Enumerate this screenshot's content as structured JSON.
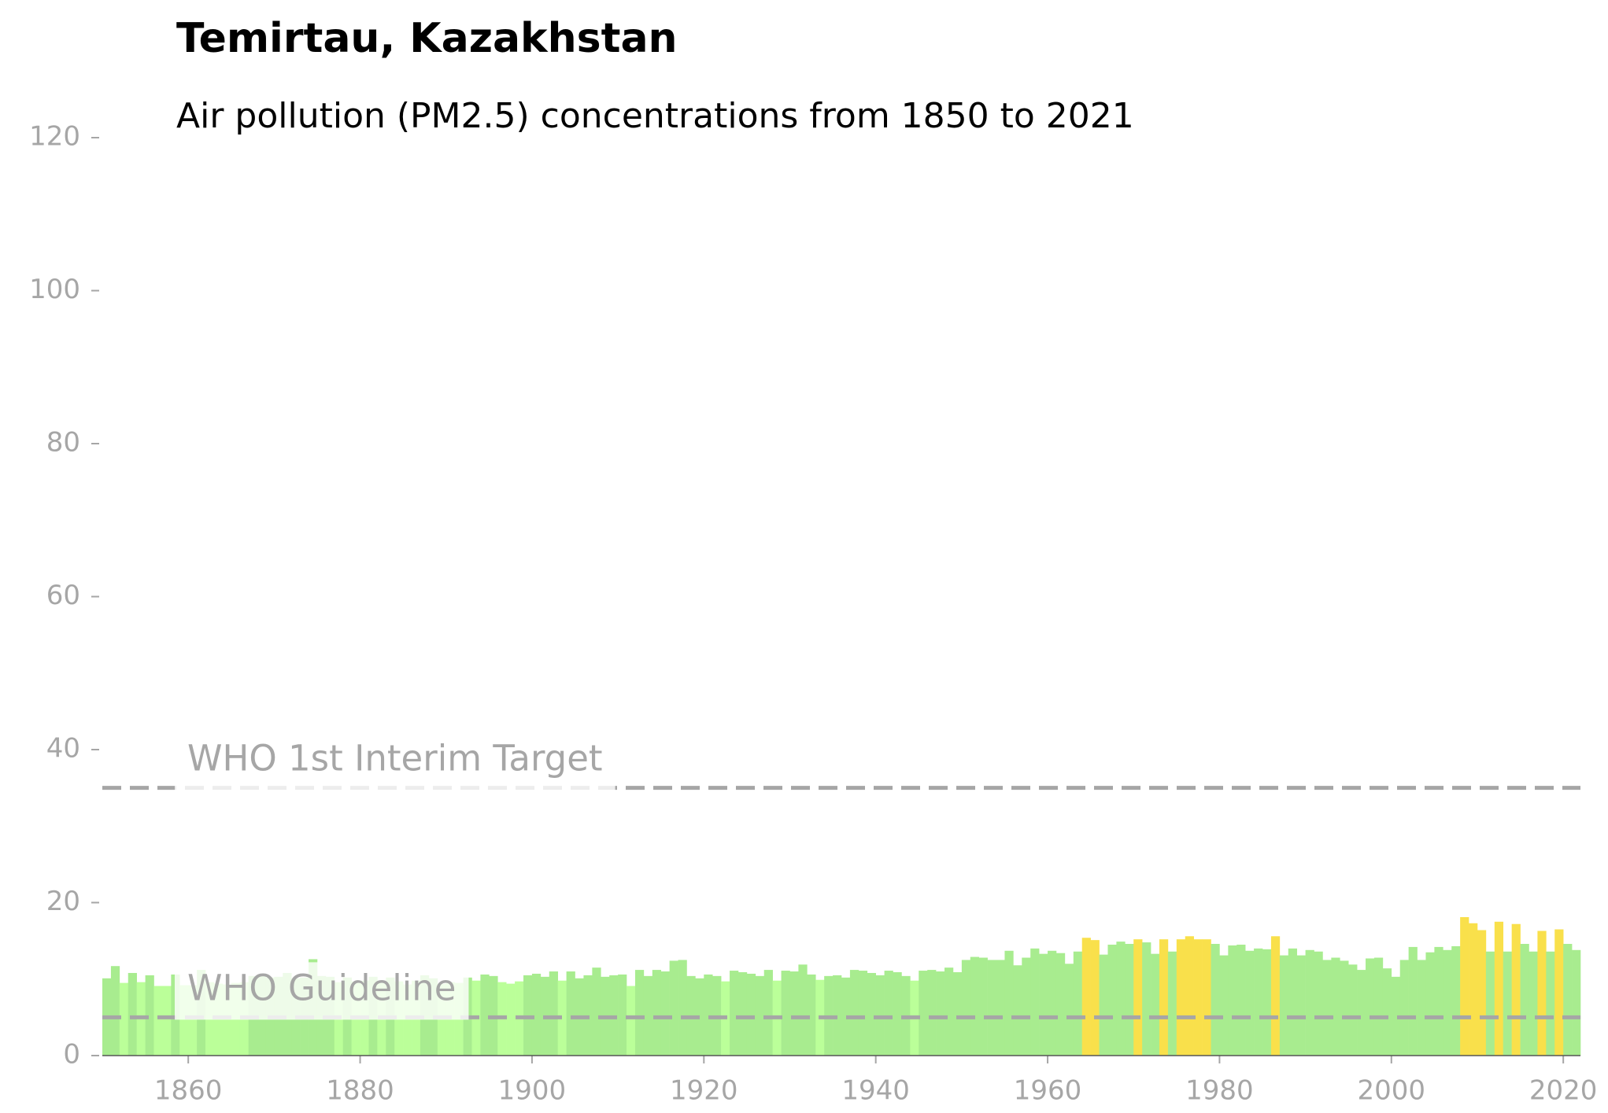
{
  "chart_data": {
    "type": "bar",
    "title": "Temirtau, Kazakhstan",
    "subtitle": "Air pollution (PM2.5) concentrations from 1850 to 2021",
    "x": [
      1850,
      1851,
      1852,
      1853,
      1854,
      1855,
      1856,
      1857,
      1858,
      1859,
      1860,
      1861,
      1862,
      1863,
      1864,
      1865,
      1866,
      1867,
      1868,
      1869,
      1870,
      1871,
      1872,
      1873,
      1874,
      1875,
      1876,
      1877,
      1878,
      1879,
      1880,
      1881,
      1882,
      1883,
      1884,
      1885,
      1886,
      1887,
      1888,
      1889,
      1890,
      1891,
      1892,
      1893,
      1894,
      1895,
      1896,
      1897,
      1898,
      1899,
      1900,
      1901,
      1902,
      1903,
      1904,
      1905,
      1906,
      1907,
      1908,
      1909,
      1910,
      1911,
      1912,
      1913,
      1914,
      1915,
      1916,
      1917,
      1918,
      1919,
      1920,
      1921,
      1922,
      1923,
      1924,
      1925,
      1926,
      1927,
      1928,
      1929,
      1930,
      1931,
      1932,
      1933,
      1934,
      1935,
      1936,
      1937,
      1938,
      1939,
      1940,
      1941,
      1942,
      1943,
      1944,
      1945,
      1946,
      1947,
      1948,
      1949,
      1950,
      1951,
      1952,
      1953,
      1954,
      1955,
      1956,
      1957,
      1958,
      1959,
      1960,
      1961,
      1962,
      1963,
      1964,
      1965,
      1966,
      1967,
      1968,
      1969,
      1970,
      1971,
      1972,
      1973,
      1974,
      1975,
      1976,
      1977,
      1978,
      1979,
      1980,
      1981,
      1982,
      1983,
      1984,
      1985,
      1986,
      1987,
      1988,
      1989,
      1990,
      1991,
      1992,
      1993,
      1994,
      1995,
      1996,
      1997,
      1998,
      1999,
      2000,
      2001,
      2002,
      2003,
      2004,
      2005,
      2006,
      2007,
      2008,
      2009,
      2010,
      2011,
      2012,
      2013,
      2014,
      2015,
      2016,
      2017,
      2018,
      2019,
      2020,
      2021
    ],
    "values": [
      10.1,
      11.7,
      9.5,
      10.8,
      9.6,
      10.5,
      9.1,
      9.1,
      10.6,
      9.2,
      9.2,
      11.2,
      9.6,
      9.4,
      9.3,
      9.5,
      9.6,
      10.4,
      10.6,
      10.2,
      10.3,
      10.8,
      10.1,
      10.2,
      12.6,
      10.4,
      10.3,
      9.6,
      10.2,
      9.7,
      9.8,
      10.3,
      9.5,
      10.2,
      9.7,
      9.3,
      9.8,
      10.5,
      10.1,
      9.4,
      9.6,
      9.5,
      10.2,
      9.8,
      10.6,
      10.4,
      9.6,
      9.4,
      9.7,
      10.5,
      10.7,
      10.3,
      11.0,
      9.8,
      11.0,
      10.1,
      10.5,
      11.5,
      10.3,
      10.5,
      10.6,
      9.1,
      11.2,
      10.4,
      11.2,
      11.0,
      12.4,
      12.5,
      10.4,
      10.1,
      10.6,
      10.4,
      9.7,
      11.1,
      10.9,
      10.7,
      10.4,
      11.2,
      9.8,
      11.1,
      11.0,
      11.9,
      10.6,
      9.9,
      10.4,
      10.5,
      10.2,
      11.2,
      11.1,
      10.8,
      10.5,
      11.1,
      10.9,
      10.4,
      9.8,
      11.1,
      11.2,
      11.0,
      11.5,
      10.9,
      12.5,
      12.9,
      12.8,
      12.5,
      12.5,
      13.7,
      11.8,
      12.8,
      14.0,
      13.3,
      13.7,
      13.4,
      12.0,
      13.6,
      15.4,
      15.1,
      13.2,
      14.5,
      14.9,
      14.6,
      15.2,
      14.8,
      13.3,
      15.2,
      13.6,
      15.2,
      15.6,
      15.2,
      15.2,
      14.6,
      13.1,
      14.4,
      14.5,
      13.7,
      14.0,
      13.9,
      15.6,
      13.1,
      14.0,
      13.1,
      13.8,
      13.6,
      12.5,
      12.8,
      12.4,
      11.9,
      11.2,
      12.7,
      12.8,
      11.4,
      10.3,
      12.5,
      14.2,
      12.5,
      13.5,
      14.2,
      13.8,
      14.3,
      18.1,
      17.3,
      16.4,
      13.6,
      17.5,
      13.6,
      17.2,
      14.6,
      13.6,
      16.3,
      13.6,
      16.5,
      14.6,
      13.8
    ],
    "colors": [
      "#a8ec8f",
      "#a8ec8f",
      "#bbff99",
      "#a8ec8f",
      "#bbff99",
      "#a8ec8f",
      "#bbff99",
      "#bbff99",
      "#a8ec8f",
      "#bbff99",
      "#bbff99",
      "#a8ec8f",
      "#bbff99",
      "#bbff99",
      "#bbff99",
      "#bbff99",
      "#bbff99",
      "#a8ec8f",
      "#a8ec8f",
      "#a8ec8f",
      "#a8ec8f",
      "#a8ec8f",
      "#a8ec8f",
      "#a8ec8f",
      "#a8ec8f",
      "#a8ec8f",
      "#a8ec8f",
      "#bbff99",
      "#a8ec8f",
      "#bbff99",
      "#bbff99",
      "#a8ec8f",
      "#bbff99",
      "#a8ec8f",
      "#bbff99",
      "#bbff99",
      "#bbff99",
      "#a8ec8f",
      "#a8ec8f",
      "#bbff99",
      "#bbff99",
      "#bbff99",
      "#a8ec8f",
      "#bbff99",
      "#a8ec8f",
      "#a8ec8f",
      "#bbff99",
      "#bbff99",
      "#bbff99",
      "#a8ec8f",
      "#a8ec8f",
      "#a8ec8f",
      "#a8ec8f",
      "#bbff99",
      "#a8ec8f",
      "#a8ec8f",
      "#a8ec8f",
      "#a8ec8f",
      "#a8ec8f",
      "#a8ec8f",
      "#a8ec8f",
      "#bbff99",
      "#a8ec8f",
      "#a8ec8f",
      "#a8ec8f",
      "#a8ec8f",
      "#a8ec8f",
      "#a8ec8f",
      "#a8ec8f",
      "#a8ec8f",
      "#a8ec8f",
      "#a8ec8f",
      "#bbff99",
      "#a8ec8f",
      "#a8ec8f",
      "#a8ec8f",
      "#a8ec8f",
      "#a8ec8f",
      "#bbff99",
      "#a8ec8f",
      "#a8ec8f",
      "#a8ec8f",
      "#a8ec8f",
      "#bbff99",
      "#a8ec8f",
      "#a8ec8f",
      "#a8ec8f",
      "#a8ec8f",
      "#a8ec8f",
      "#a8ec8f",
      "#a8ec8f",
      "#a8ec8f",
      "#a8ec8f",
      "#a8ec8f",
      "#bbff99",
      "#a8ec8f",
      "#a8ec8f",
      "#a8ec8f",
      "#a8ec8f",
      "#a8ec8f",
      "#a8ec8f",
      "#a8ec8f",
      "#a8ec8f",
      "#a8ec8f",
      "#a8ec8f",
      "#a8ec8f",
      "#a8ec8f",
      "#a8ec8f",
      "#a8ec8f",
      "#a8ec8f",
      "#a8ec8f",
      "#a8ec8f",
      "#a8ec8f",
      "#a8ec8f",
      "#f9e04b",
      "#f9e04b",
      "#a8ec8f",
      "#a8ec8f",
      "#a8ec8f",
      "#a8ec8f",
      "#f9e04b",
      "#a8ec8f",
      "#a8ec8f",
      "#f9e04b",
      "#a8ec8f",
      "#f9e04b",
      "#f9e04b",
      "#f9e04b",
      "#f9e04b",
      "#a8ec8f",
      "#a8ec8f",
      "#a8ec8f",
      "#a8ec8f",
      "#a8ec8f",
      "#a8ec8f",
      "#a8ec8f",
      "#f9e04b",
      "#a8ec8f",
      "#a8ec8f",
      "#a8ec8f",
      "#a8ec8f",
      "#a8ec8f",
      "#a8ec8f",
      "#a8ec8f",
      "#a8ec8f",
      "#a8ec8f",
      "#a8ec8f",
      "#a8ec8f",
      "#a8ec8f",
      "#a8ec8f",
      "#a8ec8f",
      "#a8ec8f",
      "#a8ec8f",
      "#a8ec8f",
      "#a8ec8f",
      "#a8ec8f",
      "#a8ec8f",
      "#a8ec8f",
      "#f9e04b",
      "#f9e04b",
      "#f9e04b",
      "#a8ec8f",
      "#f9e04b",
      "#a8ec8f",
      "#f9e04b",
      "#a8ec8f",
      "#a8ec8f",
      "#f9e04b",
      "#a8ec8f",
      "#f9e04b",
      "#a8ec8f",
      "#a8ec8f"
    ],
    "reference_lines": [
      {
        "value": 35,
        "label": "WHO 1st Interim Target"
      },
      {
        "value": 5,
        "label": "WHO Guideline"
      }
    ],
    "reference_color": "#a6a6a6",
    "xlim": [
      1850,
      2022
    ],
    "xticks": [
      1860,
      1880,
      1900,
      1920,
      1940,
      1960,
      1980,
      2000,
      2020
    ],
    "ylim": [
      0,
      120
    ],
    "yticks": [
      0,
      20,
      40,
      60,
      80,
      100,
      120
    ]
  }
}
